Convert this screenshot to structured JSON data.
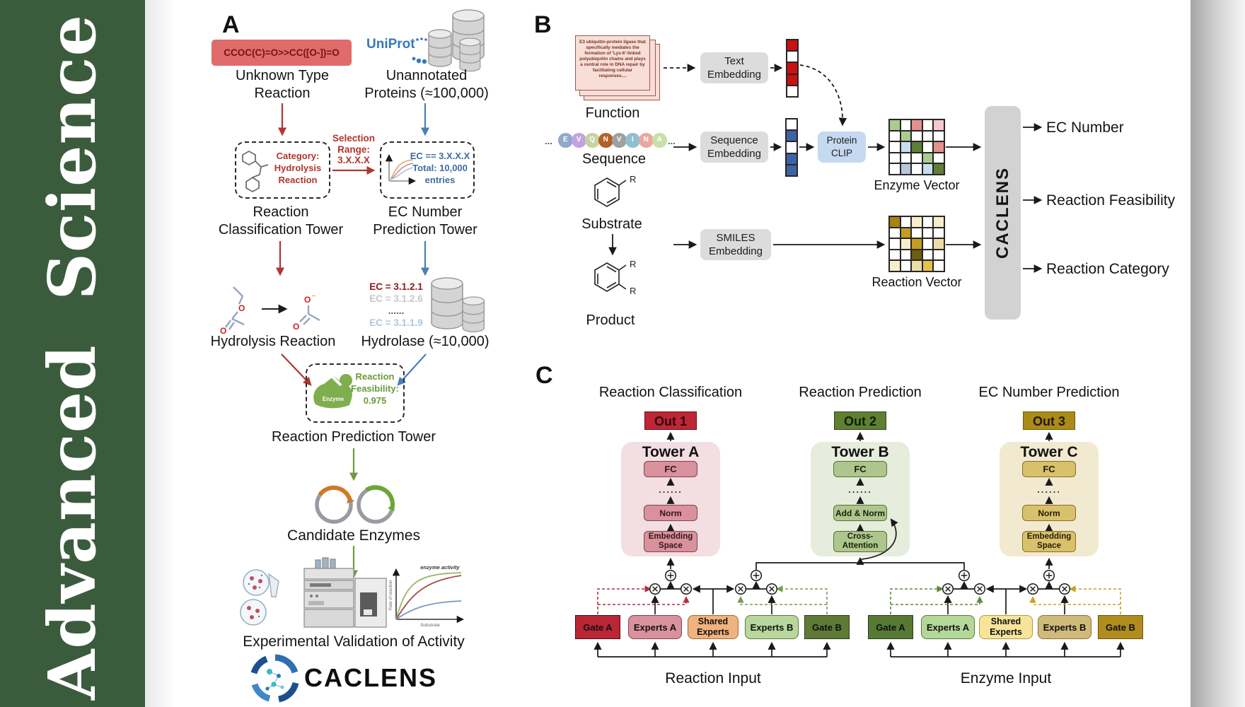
{
  "journal": {
    "sidebar_title": "Advanced Science"
  },
  "colors": {
    "sidebar_green": "#3b5b3d",
    "smiles_red": "#df6b6b",
    "arrow_red": "#b23434",
    "arrow_blue": "#4a7fb5",
    "arrow_green": "#6f9a3f",
    "uniprot_blue": "#3579b8",
    "clip_blue": "#c5d9f0",
    "out1_red": "#bf2636",
    "out2_green": "#5f8032",
    "out3_gold": "#ab8b17"
  },
  "panelA": {
    "label": "A",
    "smiles_reaction": "CCOC(C)=O>>CC([O-])=O",
    "unknown_type_label": "Unknown Type\nReaction",
    "uniprot_label": "UniProt",
    "unannotated_label": "Unannotated\nProteins (≈100,000)",
    "selection_label": "Selection\nRange:\n3.X.X.X",
    "category_box_label": "Category:\nHydrolysis\nReaction",
    "ec_box_label": "EC == 3.X.X.X\nTotal: 10,000\nentries",
    "classification_tower_label": "Reaction\nClassification Tower",
    "ec_tower_label": "EC Number\nPrediction Tower",
    "ec_list": [
      "EC = 3.1.2.1",
      "EC = 3.1.2.6",
      "......",
      "EC = 3.1.1.9"
    ],
    "hydrolysis_label": "Hydrolysis Reaction",
    "hydrolase_label": "Hydrolase (≈10,000)",
    "enzyme_icon_label": "Enzyme",
    "feasibility_label": "Reaction\nFeasibility:\n0.975",
    "prediction_tower_label": "Reaction Prediction Tower",
    "candidate_label": "Candidate Enzymes",
    "validation_label": "Experimental Validation of Activity",
    "activity_plot": {
      "ylabel": "Rate of reaction",
      "xlabel": "Substrate",
      "annotation": "enzyme activity"
    },
    "logo_text": "CACLENS"
  },
  "panelB": {
    "label": "B",
    "function_card_text": "E3 ubiquitin-protein ligase that specifically mediates the formation of 'Lys-6'-linked polyubiquitin chains and plays a central role in DNA repair by facilitating cellular responses....",
    "function_label": "Function",
    "sequence_label": "Sequence",
    "substrate_label": "Substrate",
    "product_label": "Product",
    "r_group": "R",
    "ellipsis": "...",
    "sequence_residues": [
      {
        "letter": "E",
        "color": "#92a9c9"
      },
      {
        "letter": "V",
        "color": "#c2a3e2"
      },
      {
        "letter": "Q",
        "color": "#c7d3a2"
      },
      {
        "letter": "N",
        "color": "#b35f2a"
      },
      {
        "letter": "V",
        "color": "#a0a0a0"
      },
      {
        "letter": "I",
        "color": "#8fc0d0"
      },
      {
        "letter": "N",
        "color": "#eba8a0"
      },
      {
        "letter": "A",
        "color": "#c9dfa8"
      }
    ],
    "text_embedding_label": "Text\nEmbedding",
    "sequence_embedding_label": "Sequence\nEmbedding",
    "smiles_embedding_label": "SMILES\nEmbedding",
    "protein_clip_label": "Protein\nCLIP",
    "enzyme_vector_label": "Enzyme Vector",
    "reaction_vector_label": "Reaction Vector",
    "caclens_label": "CACLENS",
    "outputs": [
      "EC Number",
      "Reaction Feasibility",
      "Reaction Category"
    ],
    "text_vector": {
      "palette": {
        "r": "#cc1111",
        "w": "#ffffff"
      },
      "rows": [
        [
          "r"
        ],
        [
          "w"
        ],
        [
          "r"
        ],
        [
          "r"
        ],
        [
          "w"
        ]
      ]
    },
    "sequence_vector": {
      "palette": {
        "b": "#3f62a7",
        "w": "#ffffff"
      },
      "rows": [
        [
          "w"
        ],
        [
          "b"
        ],
        [
          "w"
        ],
        [
          "b"
        ],
        [
          "b"
        ]
      ]
    },
    "enzyme_grid": {
      "palette": {
        "g": "#a9cc8f",
        "G": "#5f7d35",
        "s": "#e68f8f",
        "p": "#f4c9d1",
        "b": "#cadcf0",
        "y": "#b9c6d9",
        "w": "#ffffff"
      },
      "rows": [
        [
          "g",
          "w",
          "s",
          "w",
          "p"
        ],
        [
          "w",
          "g",
          "w",
          "w",
          "w"
        ],
        [
          "w",
          "b",
          "G",
          "w",
          "s"
        ],
        [
          "w",
          "w",
          "w",
          "g",
          "w"
        ],
        [
          "w",
          "y",
          "w",
          "b",
          "G"
        ]
      ]
    },
    "reaction_grid": {
      "palette": {
        "D": "#a8830e",
        "d": "#c49c1f",
        "c": "#f6eecb",
        "t": "#ecdca6",
        "O": "#6e5c12",
        "B": "#e4c14e",
        "w": "#ffffff"
      },
      "rows": [
        [
          "D",
          "w",
          "c",
          "w",
          "c"
        ],
        [
          "w",
          "d",
          "w",
          "w",
          "w"
        ],
        [
          "w",
          "c",
          "d",
          "w",
          "t"
        ],
        [
          "w",
          "w",
          "O",
          "w",
          "w"
        ],
        [
          "c",
          "w",
          "t",
          "B",
          "w"
        ]
      ]
    }
  },
  "panelC": {
    "label": "C",
    "columns": [
      {
        "title": "Reaction Classification",
        "out_label": "Out 1",
        "tower_label": "Tower A",
        "fc": "FC",
        "dots": "......",
        "mid": "Norm",
        "bottom": "Embedding\nSpace"
      },
      {
        "title": "Reaction Prediction",
        "out_label": "Out 2",
        "tower_label": "Tower B",
        "fc": "FC",
        "dots": "......",
        "mid": "Add & Norm",
        "bottom": "Cross-\nAttention"
      },
      {
        "title": "EC Number Prediction",
        "out_label": "Out 3",
        "tower_label": "Tower C",
        "fc": "FC",
        "dots": "......",
        "mid": "Norm",
        "bottom": "Embedding\nSpace"
      }
    ],
    "moe": [
      {
        "gate_a": "Gate A",
        "experts_a": "Experts A",
        "shared": "Shared\nExperts",
        "experts_b": "Experts B",
        "gate_b": "Gate B",
        "input_label": "Reaction Input"
      },
      {
        "gate_a": "Gate A",
        "experts_a": "Experts A",
        "shared": "Shared\nExperts",
        "experts_b": "Experts B",
        "gate_b": "Gate B",
        "input_label": "Enzyme Input"
      }
    ]
  }
}
